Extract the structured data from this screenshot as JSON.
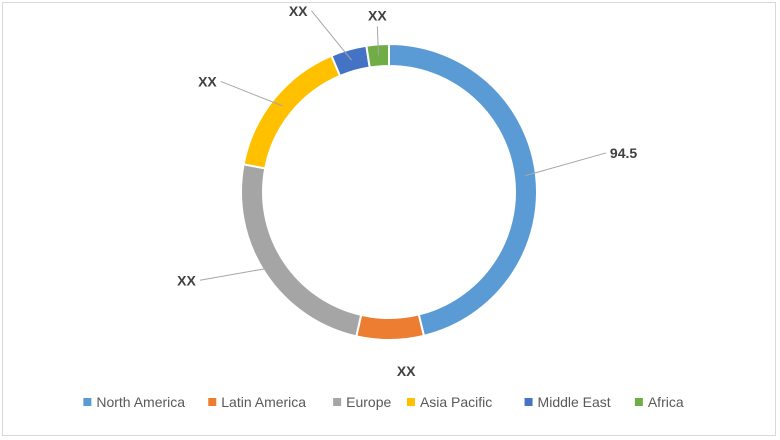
{
  "chart_data": {
    "type": "pie",
    "donut": true,
    "categories": [
      "North America",
      "Latin America",
      "Europe",
      "Asia Pacific",
      "Middle East",
      "Africa"
    ],
    "values": [
      94.5,
      15,
      50,
      32,
      8,
      5
    ],
    "data_labels": [
      "94.5",
      "XX",
      "XX",
      "XX",
      "XX",
      "XX"
    ],
    "colors": [
      "#5B9BD5",
      "#ED7D31",
      "#A5A5A5",
      "#FFC000",
      "#4472C4",
      "#70AD47"
    ],
    "title": "",
    "legend_placement": "bottom",
    "grid": false
  }
}
